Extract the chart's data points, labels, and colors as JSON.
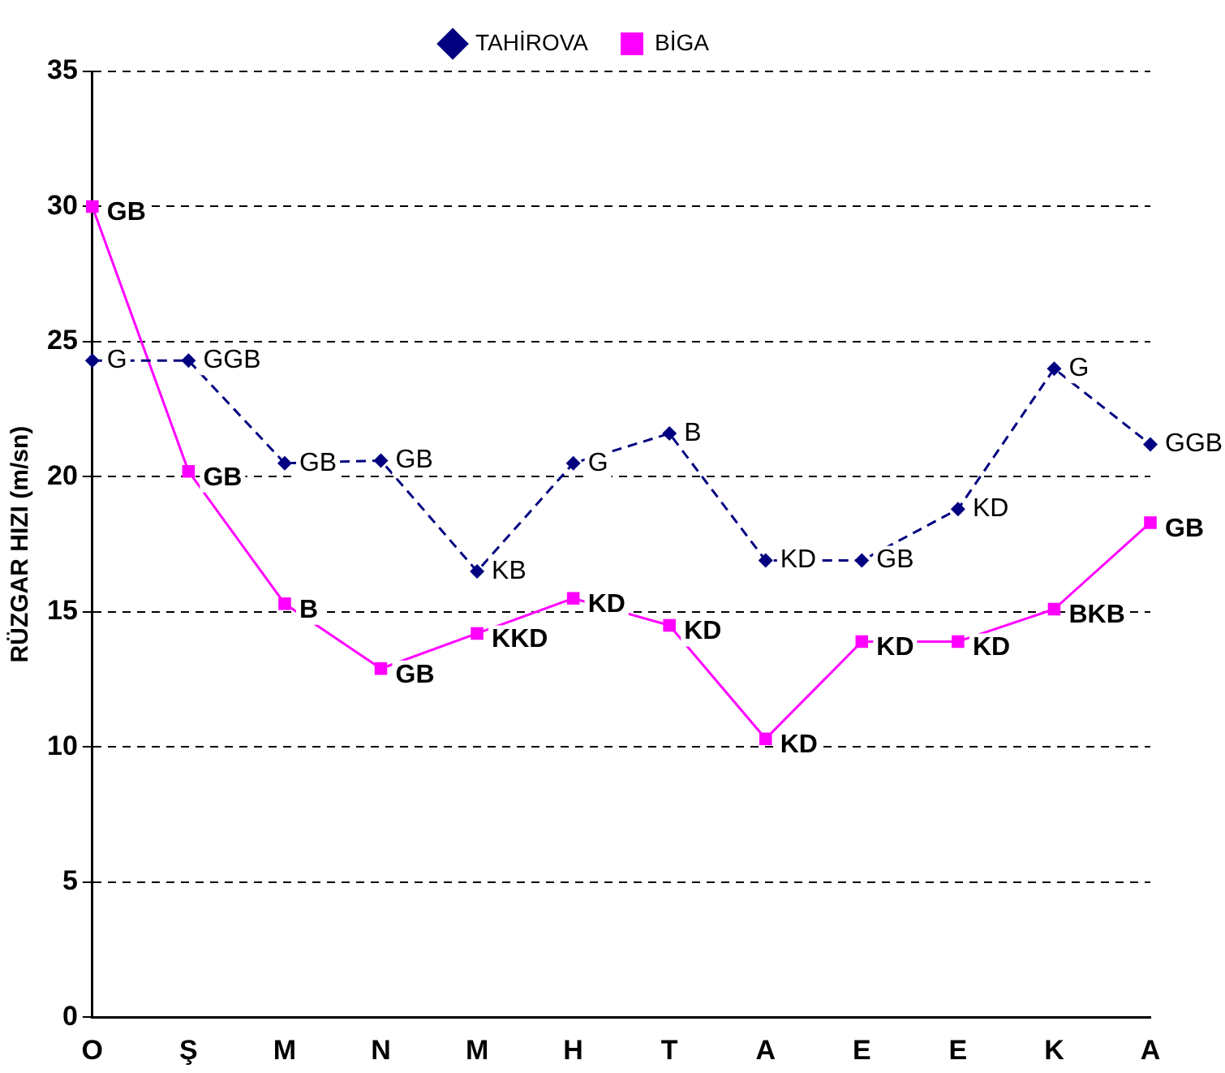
{
  "chart_data": {
    "type": "line",
    "ylabel": "RÜZGAR HIZI (m/sn)",
    "categories": [
      "O",
      "Ş",
      "M",
      "N",
      "M",
      "H",
      "T",
      "A",
      "E",
      "E",
      "K",
      "A"
    ],
    "series": [
      {
        "name": "TAHİROVA",
        "color": "#000080",
        "marker": "diamond",
        "line_style": "dashed",
        "values": [
          24.3,
          24.3,
          20.5,
          20.6,
          16.5,
          20.5,
          21.6,
          16.9,
          16.9,
          18.8,
          24.0,
          21.2
        ],
        "value_labels": [
          "G",
          "GGB",
          "GB",
          "GB",
          "KB",
          "G",
          "B",
          "KD",
          "GB",
          "KD",
          "G",
          "GGB"
        ]
      },
      {
        "name": "BİGA",
        "color": "#ff00ff",
        "marker": "square",
        "line_style": "solid",
        "values": [
          30.0,
          20.2,
          15.3,
          12.9,
          14.2,
          15.5,
          14.5,
          10.3,
          13.9,
          13.9,
          15.1,
          18.3
        ],
        "value_labels": [
          "GB",
          "GB",
          "B",
          "GB",
          "KKD",
          "KD",
          "KD",
          "KD",
          "KD",
          "KD",
          "BKB",
          "GB"
        ]
      }
    ],
    "ylim": [
      0,
      35
    ],
    "yticks": [
      0,
      5,
      10,
      15,
      20,
      25,
      30,
      35
    ],
    "grid": "y",
    "legend": "top"
  }
}
